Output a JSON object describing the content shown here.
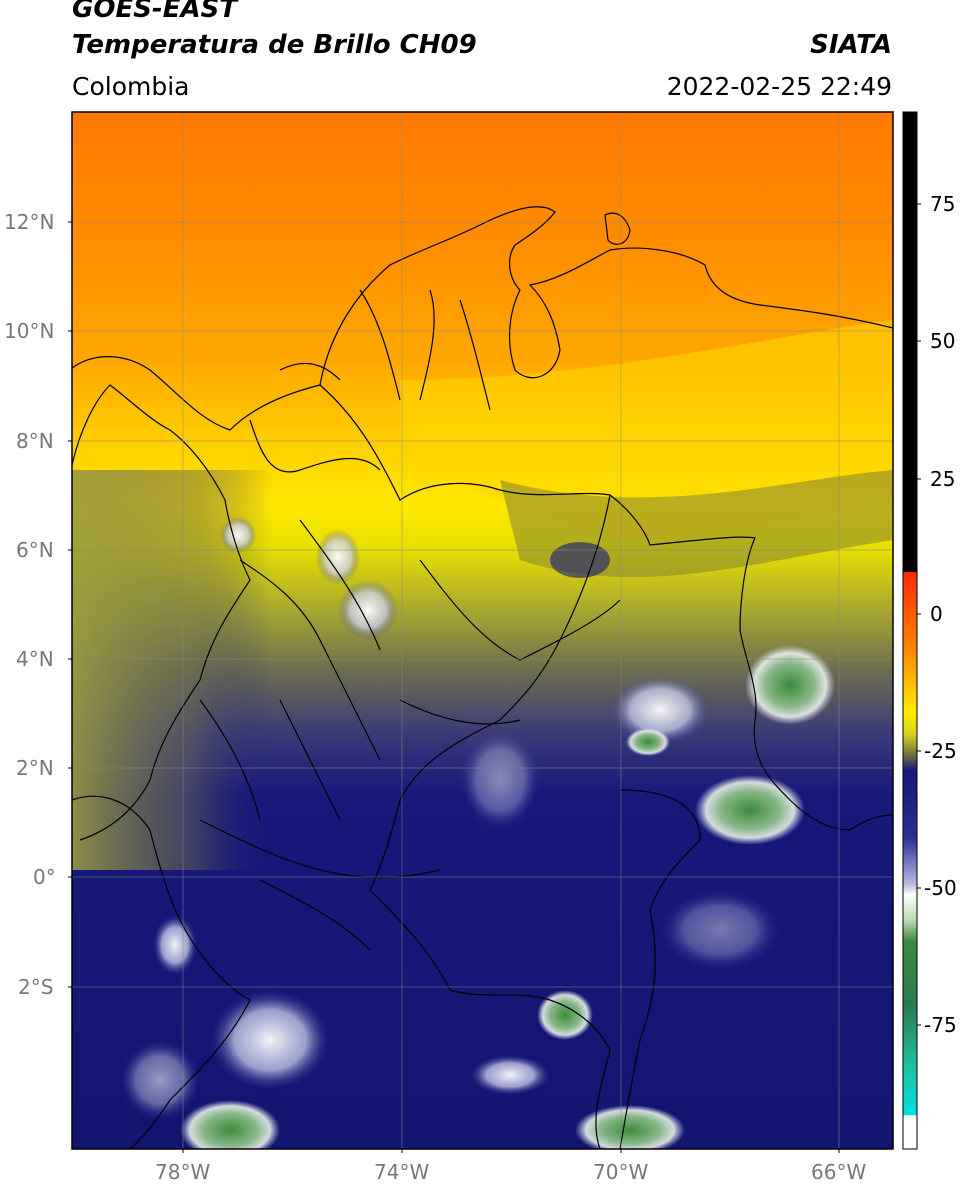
{
  "header": {
    "satellite": "GOES-EAST",
    "product": "Temperatura de Brillo CH09",
    "region": "Colombia",
    "source": "SIATA",
    "timestamp": "2022-02-25 22:49"
  },
  "map": {
    "lat_labels": [
      "12°N",
      "10°N",
      "8°N",
      "6°N",
      "4°N",
      "2°N",
      "0°",
      "2°S"
    ],
    "lon_labels": [
      "78°W",
      "74°W",
      "70°W",
      "66°W"
    ],
    "extent": {
      "lon_min": -80,
      "lon_max": -65,
      "lat_min": -5,
      "lat_max": 14
    }
  },
  "colorbar": {
    "ticks": [
      "75",
      "50",
      "25",
      "0",
      "-25",
      "-50",
      "-75"
    ],
    "colors": {
      "black": "#000000",
      "red": "#ff2a00",
      "orange": "#ff8800",
      "yellow": "#ffee00",
      "olive": "#8a8a30",
      "gray": "#555555",
      "navy": "#111577",
      "lavender": "#b8bce0",
      "white": "#ffffff",
      "green": "#3d8a3d",
      "teal": "#20c0a0",
      "cyan": "#00e0e0"
    }
  }
}
